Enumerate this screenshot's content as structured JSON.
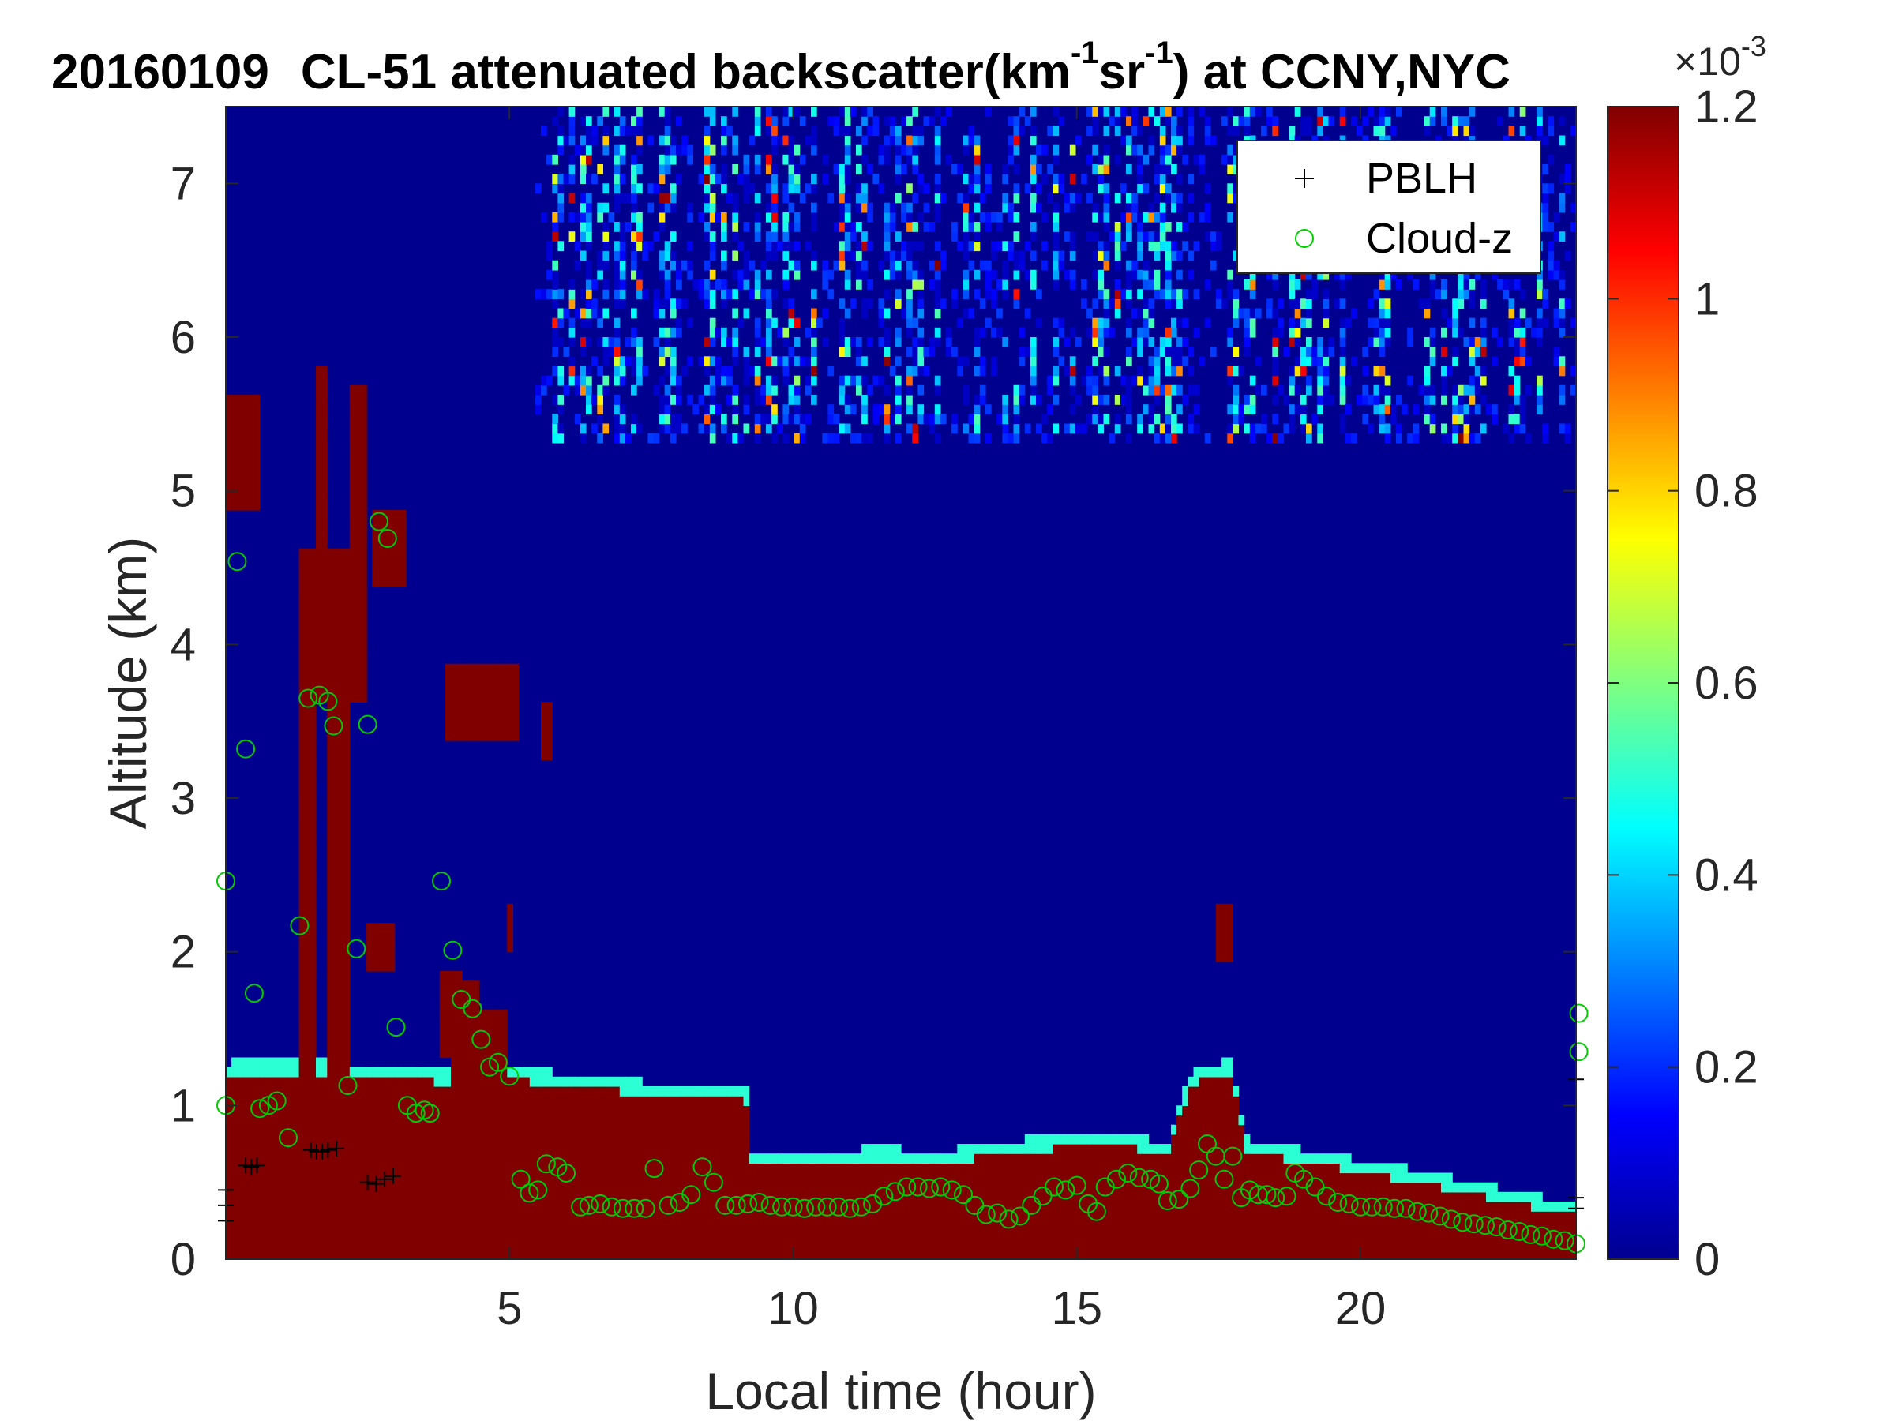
{
  "chart_data": {
    "type": "heatmap",
    "title": {
      "date": "20160109",
      "instrument": "CL-51 attenuated backscatter(km",
      "sup1": "-1",
      "mid": "sr",
      "sup2": "-1",
      "tail": ") at CCNY,NYC"
    },
    "xlabel": "Local time (hour)",
    "ylabel": "Altitude (km)",
    "xlim": [
      0,
      23.8
    ],
    "ylim": [
      0,
      7.5
    ],
    "xticks": [
      "5",
      "10",
      "15",
      "20"
    ],
    "xtick_values": [
      5,
      10,
      15,
      20
    ],
    "yticks": [
      "0",
      "1",
      "2",
      "3",
      "4",
      "5",
      "6",
      "7"
    ],
    "ytick_values": [
      0,
      1,
      2,
      3,
      4,
      5,
      6,
      7
    ],
    "colorbar": {
      "colormap": "jet",
      "range": [
        0,
        1.2
      ],
      "ticks": [
        "0",
        "0.2",
        "0.4",
        "0.6",
        "0.8",
        "1",
        "1.2"
      ],
      "tick_values": [
        0,
        0.2,
        0.4,
        0.6,
        0.8,
        1.0,
        1.2
      ],
      "multiplier_base": "×10",
      "multiplier_exp": "-3"
    },
    "legend": {
      "placement": "top-right",
      "entries": [
        {
          "name": "PBLH",
          "marker": "+",
          "color": "#000000"
        },
        {
          "name": "Cloud-z",
          "marker": "o",
          "color": "#00cc00"
        }
      ]
    },
    "background_level": 0.02,
    "high_value": 1.25,
    "dense_layer_top_profile": [
      [
        0.0,
        1.2
      ],
      [
        1.5,
        1.22
      ],
      [
        2.5,
        1.18
      ],
      [
        4.0,
        1.15
      ],
      [
        5.0,
        1.17
      ],
      [
        6.0,
        1.13
      ],
      [
        7.5,
        1.07
      ],
      [
        9.2,
        1.03
      ],
      [
        9.25,
        0.62
      ],
      [
        10.0,
        0.6
      ],
      [
        11.5,
        0.65
      ],
      [
        12.5,
        0.62
      ],
      [
        14.0,
        0.7
      ],
      [
        15.0,
        0.73
      ],
      [
        15.5,
        0.76
      ],
      [
        16.6,
        0.68
      ],
      [
        17.0,
        1.13
      ],
      [
        17.7,
        1.22
      ],
      [
        18.0,
        0.7
      ],
      [
        19.5,
        0.6
      ],
      [
        21.0,
        0.5
      ],
      [
        23.8,
        0.28
      ]
    ],
    "cloud_patches": [
      {
        "x": [
          0.0,
          0.6
        ],
        "z": [
          4.9,
          5.6
        ],
        "value": 1.25
      },
      {
        "x": [
          1.3,
          2.5
        ],
        "z": [
          3.6,
          4.6
        ],
        "value": 1.25
      },
      {
        "x": [
          1.3,
          1.6
        ],
        "z": [
          0.9,
          3.6
        ],
        "value": 1.25
      },
      {
        "x": [
          1.8,
          2.2
        ],
        "z": [
          0.9,
          3.6
        ],
        "value": 1.25
      },
      {
        "x": [
          1.6,
          1.8
        ],
        "z": [
          4.6,
          5.8
        ],
        "value": 1.25
      },
      {
        "x": [
          2.2,
          2.5
        ],
        "z": [
          4.6,
          5.7
        ],
        "value": 1.25
      },
      {
        "x": [
          2.6,
          3.2
        ],
        "z": [
          4.4,
          4.9
        ],
        "value": 1.25
      },
      {
        "x": [
          2.5,
          3.0
        ],
        "z": [
          1.9,
          2.2
        ],
        "value": 1.25
      },
      {
        "x": [
          3.8,
          4.2
        ],
        "z": [
          1.3,
          1.9
        ],
        "value": 1.25
      },
      {
        "x": [
          4.0,
          4.5
        ],
        "z": [
          1.1,
          1.8
        ],
        "value": 1.25
      },
      {
        "x": [
          4.4,
          5.0
        ],
        "z": [
          1.05,
          1.65
        ],
        "value": 1.25
      },
      {
        "x": [
          3.9,
          5.2
        ],
        "z": [
          3.4,
          3.85
        ],
        "value": 1.25
      },
      {
        "x": [
          5.6,
          5.75
        ],
        "z": [
          3.25,
          3.65
        ],
        "value": 1.25
      },
      {
        "x": [
          4.95,
          5.1
        ],
        "z": [
          2.0,
          2.3
        ],
        "value": 1.25
      },
      {
        "x": [
          17.5,
          17.8
        ],
        "z": [
          1.95,
          2.3
        ],
        "value": 1.25
      }
    ],
    "cirrus_region": {
      "x": [
        5.5,
        23.8
      ],
      "z": [
        5.3,
        7.5
      ],
      "typical_value": [
        0.1,
        1.2
      ]
    },
    "series": [
      {
        "name": "PBLH",
        "marker": "+",
        "points": [
          [
            0.35,
            0.61
          ],
          [
            0.45,
            0.6
          ],
          [
            0.55,
            0.61
          ],
          [
            1.5,
            0.71
          ],
          [
            1.6,
            0.7
          ],
          [
            1.7,
            0.7
          ],
          [
            1.8,
            0.71
          ],
          [
            1.95,
            0.72
          ],
          [
            2.5,
            0.5
          ],
          [
            2.65,
            0.49
          ],
          [
            2.8,
            0.52
          ],
          [
            2.95,
            0.54
          ],
          [
            0.0,
            0.45
          ],
          [
            0.0,
            0.35
          ],
          [
            0.0,
            0.25
          ],
          [
            23.8,
            0.4
          ],
          [
            23.8,
            0.33
          ],
          [
            23.8,
            1.17
          ]
        ]
      },
      {
        "name": "Cloud-z",
        "marker": "o",
        "points": [
          [
            0.0,
            2.46
          ],
          [
            0.0,
            1.0
          ],
          [
            0.2,
            4.54
          ],
          [
            0.35,
            3.32
          ],
          [
            0.5,
            1.73
          ],
          [
            0.6,
            0.98
          ],
          [
            0.75,
            1.0
          ],
          [
            0.9,
            1.03
          ],
          [
            1.1,
            0.79
          ],
          [
            1.3,
            2.17
          ],
          [
            1.45,
            3.65
          ],
          [
            1.65,
            3.67
          ],
          [
            1.8,
            3.63
          ],
          [
            1.9,
            3.47
          ],
          [
            2.15,
            1.13
          ],
          [
            2.3,
            2.02
          ],
          [
            2.5,
            3.48
          ],
          [
            2.7,
            4.8
          ],
          [
            2.85,
            4.69
          ],
          [
            3.0,
            1.51
          ],
          [
            3.2,
            1.0
          ],
          [
            3.35,
            0.95
          ],
          [
            3.5,
            0.97
          ],
          [
            3.6,
            0.95
          ],
          [
            3.8,
            2.46
          ],
          [
            4.0,
            2.01
          ],
          [
            4.15,
            1.69
          ],
          [
            4.35,
            1.63
          ],
          [
            4.5,
            1.43
          ],
          [
            4.65,
            1.25
          ],
          [
            4.8,
            1.28
          ],
          [
            5.0,
            1.19
          ],
          [
            5.2,
            0.52
          ],
          [
            5.35,
            0.43
          ],
          [
            5.5,
            0.45
          ],
          [
            5.65,
            0.62
          ],
          [
            5.85,
            0.6
          ],
          [
            6.0,
            0.56
          ],
          [
            6.25,
            0.34
          ],
          [
            6.4,
            0.35
          ],
          [
            6.6,
            0.36
          ],
          [
            6.8,
            0.34
          ],
          [
            7.0,
            0.33
          ],
          [
            7.2,
            0.33
          ],
          [
            7.4,
            0.33
          ],
          [
            7.55,
            0.59
          ],
          [
            7.8,
            0.35
          ],
          [
            8.0,
            0.37
          ],
          [
            8.2,
            0.42
          ],
          [
            8.4,
            0.6
          ],
          [
            8.6,
            0.5
          ],
          [
            8.8,
            0.35
          ],
          [
            9.0,
            0.35
          ],
          [
            9.2,
            0.36
          ],
          [
            9.4,
            0.37
          ],
          [
            9.6,
            0.35
          ],
          [
            9.8,
            0.34
          ],
          [
            10.0,
            0.34
          ],
          [
            10.2,
            0.33
          ],
          [
            10.4,
            0.34
          ],
          [
            10.6,
            0.34
          ],
          [
            10.8,
            0.34
          ],
          [
            11.0,
            0.33
          ],
          [
            11.2,
            0.34
          ],
          [
            11.4,
            0.36
          ],
          [
            11.6,
            0.41
          ],
          [
            11.8,
            0.44
          ],
          [
            12.0,
            0.47
          ],
          [
            12.2,
            0.47
          ],
          [
            12.4,
            0.46
          ],
          [
            12.6,
            0.47
          ],
          [
            12.8,
            0.45
          ],
          [
            13.0,
            0.42
          ],
          [
            13.2,
            0.35
          ],
          [
            13.4,
            0.29
          ],
          [
            13.6,
            0.3
          ],
          [
            13.8,
            0.26
          ],
          [
            14.0,
            0.28
          ],
          [
            14.2,
            0.35
          ],
          [
            14.4,
            0.41
          ],
          [
            14.6,
            0.47
          ],
          [
            14.8,
            0.45
          ],
          [
            15.0,
            0.48
          ],
          [
            15.2,
            0.36
          ],
          [
            15.35,
            0.31
          ],
          [
            15.5,
            0.47
          ],
          [
            15.7,
            0.52
          ],
          [
            15.9,
            0.56
          ],
          [
            16.1,
            0.53
          ],
          [
            16.3,
            0.52
          ],
          [
            16.45,
            0.49
          ],
          [
            16.6,
            0.38
          ],
          [
            16.8,
            0.39
          ],
          [
            17.0,
            0.46
          ],
          [
            17.15,
            0.58
          ],
          [
            17.3,
            0.75
          ],
          [
            17.45,
            0.67
          ],
          [
            17.6,
            0.52
          ],
          [
            17.75,
            0.67
          ],
          [
            17.9,
            0.4
          ],
          [
            18.05,
            0.45
          ],
          [
            18.2,
            0.42
          ],
          [
            18.35,
            0.42
          ],
          [
            18.5,
            0.4
          ],
          [
            18.7,
            0.41
          ],
          [
            18.85,
            0.56
          ],
          [
            19.0,
            0.52
          ],
          [
            19.2,
            0.47
          ],
          [
            19.4,
            0.41
          ],
          [
            19.6,
            0.37
          ],
          [
            19.8,
            0.36
          ],
          [
            20.0,
            0.34
          ],
          [
            20.2,
            0.34
          ],
          [
            20.4,
            0.34
          ],
          [
            20.6,
            0.33
          ],
          [
            20.8,
            0.33
          ],
          [
            21.0,
            0.31
          ],
          [
            21.2,
            0.3
          ],
          [
            21.4,
            0.28
          ],
          [
            21.6,
            0.26
          ],
          [
            21.8,
            0.24
          ],
          [
            22.0,
            0.23
          ],
          [
            22.2,
            0.22
          ],
          [
            22.4,
            0.21
          ],
          [
            22.6,
            0.19
          ],
          [
            22.8,
            0.18
          ],
          [
            23.0,
            0.16
          ],
          [
            23.2,
            0.15
          ],
          [
            23.4,
            0.13
          ],
          [
            23.6,
            0.12
          ],
          [
            23.8,
            0.1
          ],
          [
            23.85,
            1.6
          ],
          [
            23.85,
            1.35
          ]
        ]
      }
    ]
  }
}
